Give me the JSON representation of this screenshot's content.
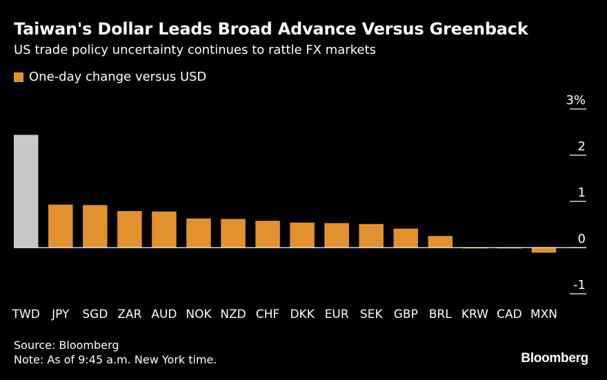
{
  "header": {
    "title": "Taiwan's Dollar Leads Broad Advance Versus Greenback",
    "subtitle": "US trade policy uncertainty continues to rattle FX markets"
  },
  "legend": {
    "label": "One-day change versus USD"
  },
  "footer": {
    "source": "Source: Bloomberg",
    "note": "Note: As of 9:45 a.m. New York time."
  },
  "brand": {
    "logo_text": "Bloomberg"
  },
  "colors": {
    "background": "#000000",
    "bar": "#e3912f",
    "highlight_bar": "#c8c8c8",
    "text": "#ffffff"
  },
  "chart_data": {
    "type": "bar",
    "categories": [
      "TWD",
      "JPY",
      "SGD",
      "ZAR",
      "AUD",
      "NOK",
      "NZD",
      "CHF",
      "DKK",
      "EUR",
      "SEK",
      "GBP",
      "BRL",
      "KRW",
      "CAD",
      "MXN"
    ],
    "series": [
      {
        "name": "One-day change versus USD",
        "values": [
          2.44,
          0.93,
          0.92,
          0.79,
          0.78,
          0.63,
          0.62,
          0.58,
          0.54,
          0.53,
          0.51,
          0.41,
          0.25,
          -0.01,
          -0.01,
          -0.11
        ]
      }
    ],
    "highlight_category": "TWD",
    "ylim": [
      -1,
      3
    ],
    "yticks": [
      -1,
      0,
      1,
      2,
      3
    ],
    "ytick_labels": [
      "-1",
      "0",
      "1",
      "2",
      "3%"
    ],
    "grid": false,
    "legend_position": "top-left"
  }
}
